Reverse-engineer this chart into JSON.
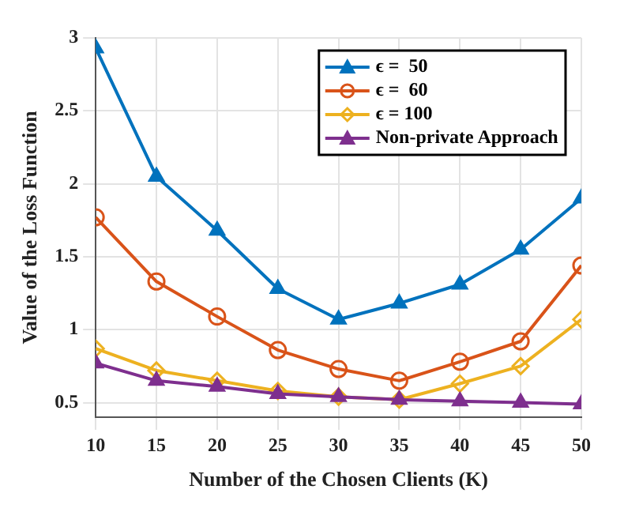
{
  "chart_data": {
    "type": "line",
    "xlabel": "Number of the Chosen Clients (K)",
    "ylabel": "Value of the Loss Function",
    "x": [
      10,
      15,
      20,
      25,
      30,
      35,
      40,
      45,
      50
    ],
    "series": [
      {
        "name": "ϵ =  50",
        "color": "#0072bd",
        "marker": "triangle",
        "values": [
          2.93,
          2.05,
          1.68,
          1.28,
          1.07,
          1.18,
          1.31,
          1.55,
          1.9
        ]
      },
      {
        "name": "ϵ =  60",
        "color": "#d95319",
        "marker": "circle",
        "values": [
          1.77,
          1.33,
          1.09,
          0.86,
          0.73,
          0.65,
          0.78,
          0.92,
          1.44
        ]
      },
      {
        "name": "ϵ = 100",
        "color": "#edb120",
        "marker": "diamond",
        "values": [
          0.87,
          0.72,
          0.65,
          0.58,
          0.54,
          0.52,
          0.63,
          0.75,
          1.07
        ]
      },
      {
        "name": "Non-private Approach",
        "color": "#7e2f8e",
        "marker": "triangle",
        "values": [
          0.77,
          0.65,
          0.61,
          0.56,
          0.54,
          0.52,
          0.51,
          0.5,
          0.49
        ]
      }
    ],
    "xlim": [
      10,
      50
    ],
    "xticks": [
      10,
      15,
      20,
      25,
      30,
      35,
      40,
      45,
      50
    ],
    "ylim": [
      0.4,
      3
    ],
    "yticks": [
      0.5,
      1,
      1.5,
      2,
      2.5,
      3
    ],
    "grid": true,
    "legend": "top right"
  }
}
